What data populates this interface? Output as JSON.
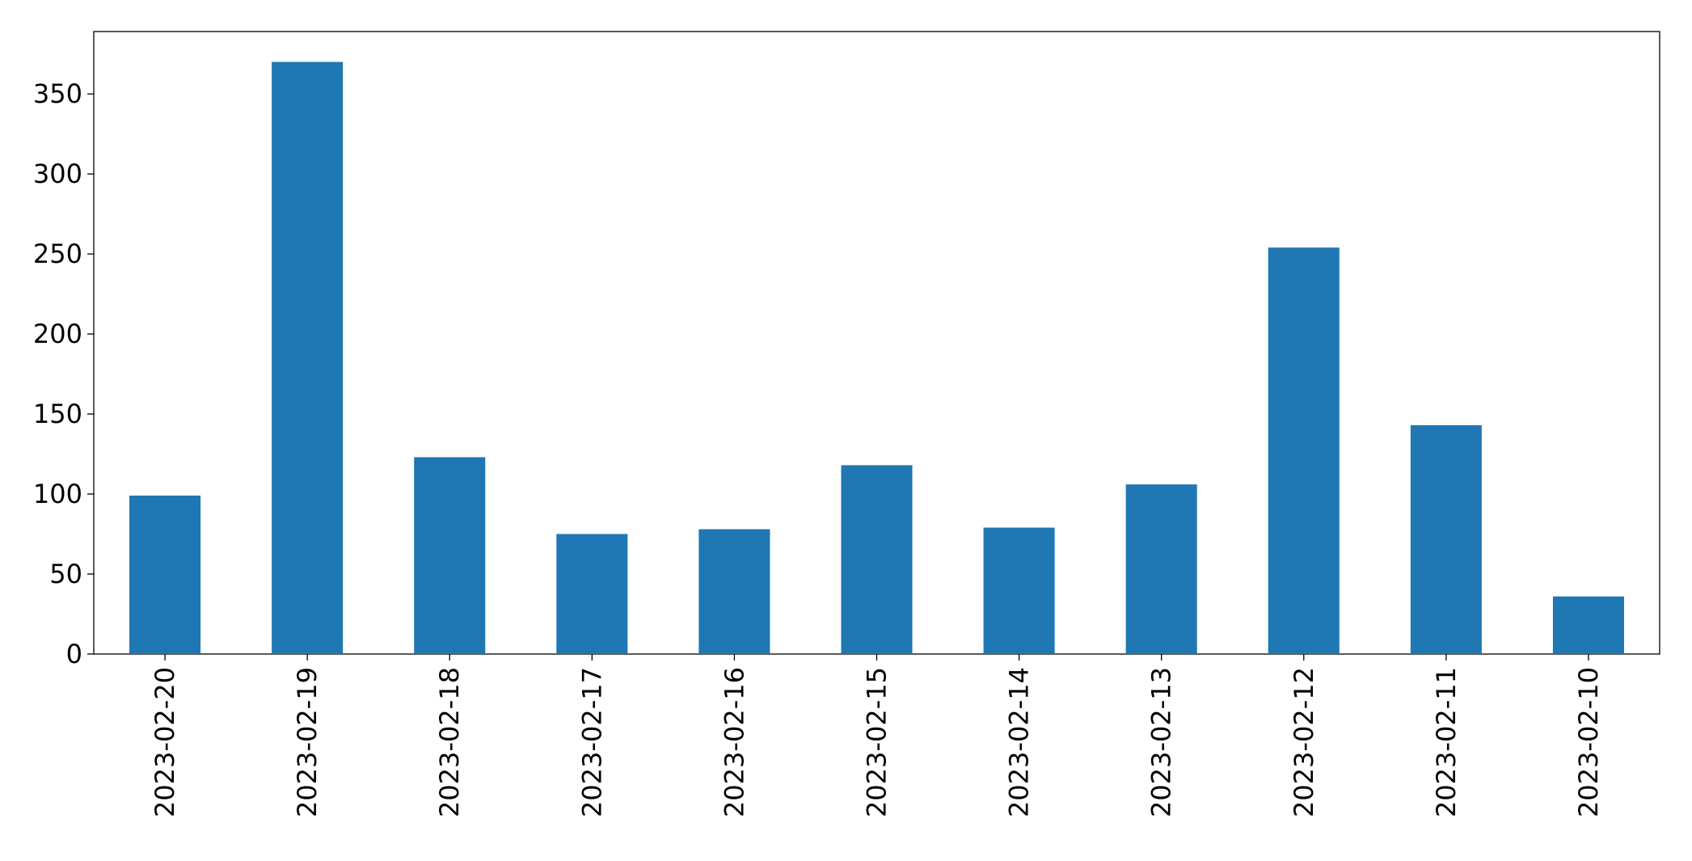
{
  "chart_data": {
    "type": "bar",
    "categories": [
      "2023-02-20",
      "2023-02-19",
      "2023-02-18",
      "2023-02-17",
      "2023-02-16",
      "2023-02-15",
      "2023-02-14",
      "2023-02-13",
      "2023-02-12",
      "2023-02-11",
      "2023-02-10"
    ],
    "values": [
      99,
      370,
      123,
      75,
      78,
      118,
      79,
      106,
      254,
      143,
      36
    ],
    "color": "#1f77b4",
    "ylim": [
      0,
      389
    ],
    "yticks": [
      0,
      50,
      100,
      150,
      200,
      250,
      300,
      350
    ],
    "grid": false
  }
}
